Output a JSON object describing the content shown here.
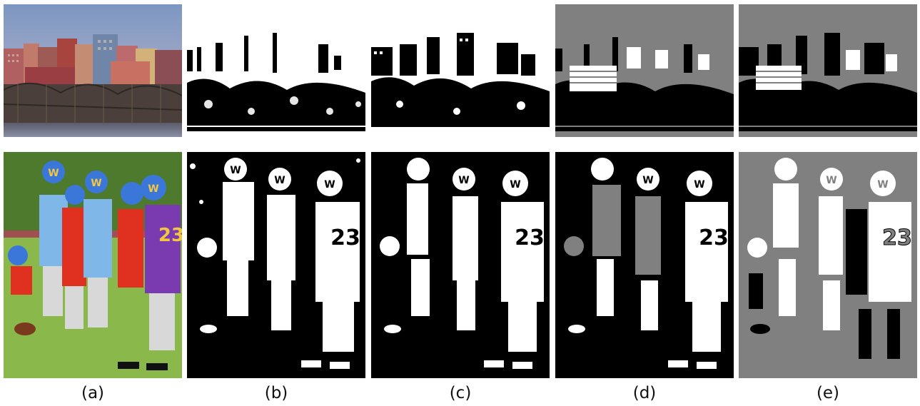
{
  "figure": {
    "panels": [
      {
        "label": "(a)",
        "kind": "color-original"
      },
      {
        "label": "(b)",
        "kind": "binary-segmentation"
      },
      {
        "label": "(c)",
        "kind": "binary-segmentation"
      },
      {
        "label": "(d)",
        "kind": "ternary-segmentation"
      },
      {
        "label": "(e)",
        "kind": "ternary-segmentation"
      }
    ],
    "rows": [
      {
        "scene": "city-skyline-with-fence"
      },
      {
        "scene": "youth-football-players"
      }
    ],
    "jersey_number": "23",
    "helmet_letter": "W",
    "colors": {
      "sky": "#8fa6c6",
      "buildings": "#b7665a",
      "fence": "#4b4038",
      "grass": "#7fae3d",
      "jersey_blue": "#7fb8e8",
      "jersey_red": "#e03020",
      "jersey_purple": "#7a3bb0",
      "helmet": "#3a77d8",
      "gray": "#808080",
      "black": "#000000",
      "white": "#ffffff"
    }
  }
}
